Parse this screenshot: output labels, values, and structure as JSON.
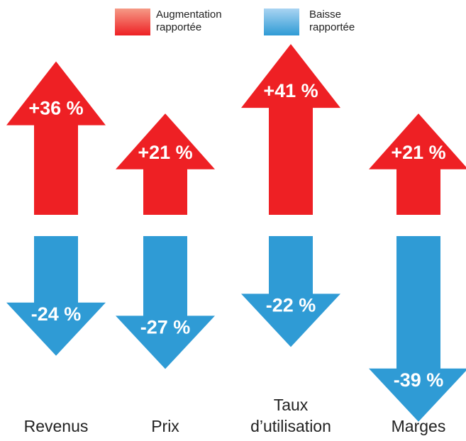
{
  "chart_data": {
    "type": "diverging-arrow",
    "categories": [
      "Revenus",
      "Prix",
      "Taux\nd’utilisation",
      "Marges"
    ],
    "series": [
      {
        "name": "Augmentation\nrapportée",
        "color": "#ee2024",
        "values": [
          36,
          21,
          41,
          21
        ],
        "value_labels": [
          "+36 %",
          "+21 %",
          "+41 %",
          "+21 %"
        ]
      },
      {
        "name": "Baisse\nrapportée",
        "color": "#2f9bd5",
        "values": [
          -24,
          -27,
          -22,
          -39
        ],
        "value_labels": [
          "-24 %",
          "-27 %",
          "-22 %",
          "-39 %"
        ]
      }
    ]
  }
}
